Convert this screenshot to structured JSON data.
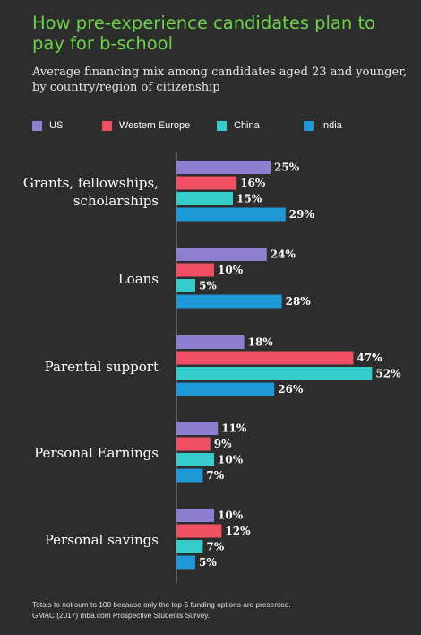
{
  "title": "How pre-experience candidates plan to pay for b-school",
  "subtitle": "Average financing mix among candidates aged 23 and younger, by country/region of citizenship",
  "legend": [
    {
      "name": "US",
      "color": "#8f80cf"
    },
    {
      "name": "Western Europe",
      "color": "#f14f64"
    },
    {
      "name": "China",
      "color": "#36cccc"
    },
    {
      "name": "India",
      "color": "#1f98d6"
    }
  ],
  "footnote_line1": "Totals to not sum to 100 because only the top-5 funding options are presented.",
  "footnote_line2": "GMAC (2017) mba.com Prospective Students Survey.",
  "chart_data": {
    "type": "bar",
    "orientation": "horizontal",
    "categories": [
      [
        "Grants, fellowships,",
        "scholarships"
      ],
      [
        "Loans"
      ],
      [
        "Parental support"
      ],
      [
        "Personal Earnings"
      ],
      [
        "Personal savings"
      ]
    ],
    "series": [
      {
        "name": "US",
        "color": "#8f80cf",
        "values": [
          25,
          24,
          18,
          11,
          10
        ]
      },
      {
        "name": "Western Europe",
        "color": "#f14f64",
        "values": [
          16,
          10,
          47,
          9,
          12
        ]
      },
      {
        "name": "China",
        "color": "#36cccc",
        "values": [
          15,
          5,
          52,
          10,
          7
        ]
      },
      {
        "name": "India",
        "color": "#1f98d6",
        "values": [
          29,
          28,
          26,
          7,
          5
        ]
      }
    ],
    "value_suffix": "%",
    "legend_position": "top",
    "grid": false
  }
}
